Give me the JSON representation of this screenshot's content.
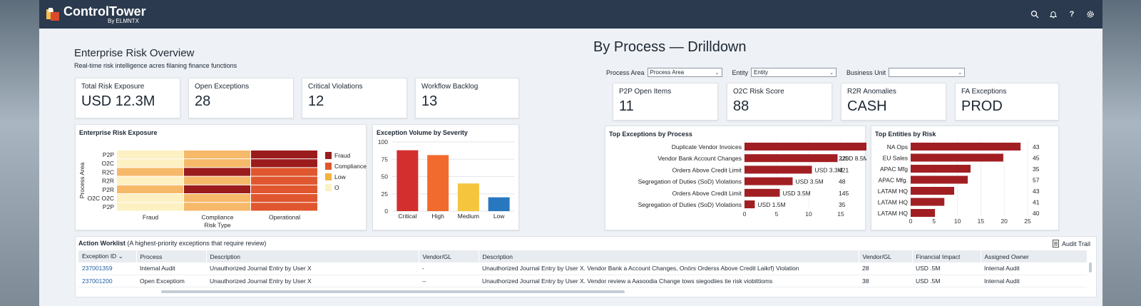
{
  "app": {
    "name": "ControlTower",
    "byline": "By ELMNTX"
  },
  "topbar_icons": [
    "search-icon",
    "bell-icon",
    "help-icon",
    "settings-icon"
  ],
  "overview": {
    "title": "Enterprise Risk Overview",
    "subtitle": "Real-time risk intelligence acres filaning finance functions",
    "kpis": [
      {
        "label": "Total Risk Exposure",
        "value": "USD 12.3M"
      },
      {
        "label": "Open Exceptions",
        "value": "28"
      },
      {
        "label": "Critical Violations",
        "value": "12"
      },
      {
        "label": "Workflow Backlog",
        "value": "13"
      }
    ]
  },
  "drilldown": {
    "title": "By Process — Drilldown",
    "filters": [
      {
        "label": "Process Area",
        "value": "Process Area"
      },
      {
        "label": "Entity",
        "value": "Entity"
      },
      {
        "label": "Business Unit",
        "value": ""
      }
    ],
    "kpis": [
      {
        "label": "P2P Open Items",
        "value": "11"
      },
      {
        "label": "O2C Risk Score",
        "value": "88"
      },
      {
        "label": "R2R Anomalies",
        "value": "CASH"
      },
      {
        "label": "FA Exceptions",
        "value": "PROD"
      }
    ]
  },
  "chart_data": [
    {
      "type": "heatmap",
      "title": "Enterprise Risk Exposure",
      "ylabel": "Process Area",
      "xlabel": "Risk Type",
      "x": [
        "Fraud",
        "Compliance",
        "Operational"
      ],
      "y": [
        "P2P",
        "O2C",
        "R2C",
        "R2R",
        "P2R",
        "O2C O2C",
        "P2P"
      ],
      "values": [
        [
          0,
          1,
          3
        ],
        [
          0,
          1,
          3
        ],
        [
          1,
          3,
          2
        ],
        [
          0,
          1,
          2
        ],
        [
          1,
          3,
          2
        ],
        [
          0,
          1,
          2
        ],
        [
          0,
          1,
          2
        ]
      ],
      "legend": [
        "Fraud",
        "Compliance",
        "Low",
        "O"
      ],
      "legend_colors": [
        "#9b1c1c",
        "#e0572f",
        "#f4b23e",
        "#fdf0c2"
      ],
      "legend_position": "right"
    },
    {
      "type": "bar",
      "title": "Exception Volume by Severity",
      "categories": [
        "Critical",
        "High",
        "Medium",
        "Low"
      ],
      "values": [
        88,
        81,
        40,
        20
      ],
      "colors": [
        "#d32f2f",
        "#f26b2e",
        "#f5c53d",
        "#2878c0"
      ],
      "ylim": [
        0,
        100
      ],
      "yticks": [
        0,
        25,
        50,
        75,
        100
      ]
    },
    {
      "type": "bar",
      "orientation": "horizontal",
      "title": "Top Exceptions by Process",
      "categories": [
        "Duplicate Vendor Invoices",
        "Vendor Bank Account Changes",
        "Orders Above Credit Limit",
        "Segregation of Duties (SoD) Violations",
        "Orders Above Credit Limit",
        "Segregation of Duties (SoD) Violations"
      ],
      "values": [
        20,
        14.5,
        10.5,
        7.5,
        5.5,
        1.6
      ],
      "data_labels": [
        "USD 8.5M",
        "USD 8.5M",
        "USD 3.3M",
        "USD 3.5M",
        "USD 3.5M",
        "USD 1.5M"
      ],
      "counts": [
        "",
        "220",
        "421",
        "48",
        "145",
        "35"
      ],
      "xlim": [
        0,
        20
      ],
      "xticks": [
        0,
        5,
        10,
        15,
        20
      ],
      "color": "#a11f23"
    },
    {
      "type": "bar",
      "orientation": "horizontal",
      "title": "Top Entities by Risk",
      "categories": [
        "NA Ops",
        "EU Sales",
        "APAC Mfg",
        "APAC Mfg.",
        "LATAM HQ",
        "LATAM HQ",
        "LATAM HQ"
      ],
      "values": [
        23.5,
        19.8,
        12.8,
        12.2,
        9.3,
        7.2,
        5.2
      ],
      "counts": [
        "43",
        "45",
        "35",
        "57",
        "43",
        "41",
        "40"
      ],
      "xlim": [
        0,
        25
      ],
      "xticks": [
        0,
        5,
        10,
        15,
        20,
        25
      ],
      "color": "#a11f23"
    }
  ],
  "worklist": {
    "title_bold": "Action Worklist",
    "title_rest": " (A highest-priority exceptions that require review)",
    "audit_label": "Audit Trail",
    "columns": [
      "Exception ID",
      "Process",
      "Description",
      "Vendor/GL",
      "Description",
      "Vendor/GL",
      "Financial Impact",
      "Assigned Owner"
    ],
    "rows": [
      [
        "237001359",
        "Internal Audit",
        "Unauthorized Journal Entry by User X",
        "-",
        "Unauthorized Journal Entry by User X. Vendor Bank a Account Changes, Onörs Orderss Above Credit Laikrf) Violation",
        "28",
        "USD .5M",
        "Internal Audit"
      ],
      [
        "237001200",
        "Open Exceptiom",
        "Unauthorized Journal Entry by User X",
        "--",
        "Unauthorized Journal Entry by User X. Vendor review a Aasoodia Change tows siegodiies tie risk viobittioms",
        "38",
        "USD .5M",
        "Internal Audit"
      ]
    ]
  }
}
